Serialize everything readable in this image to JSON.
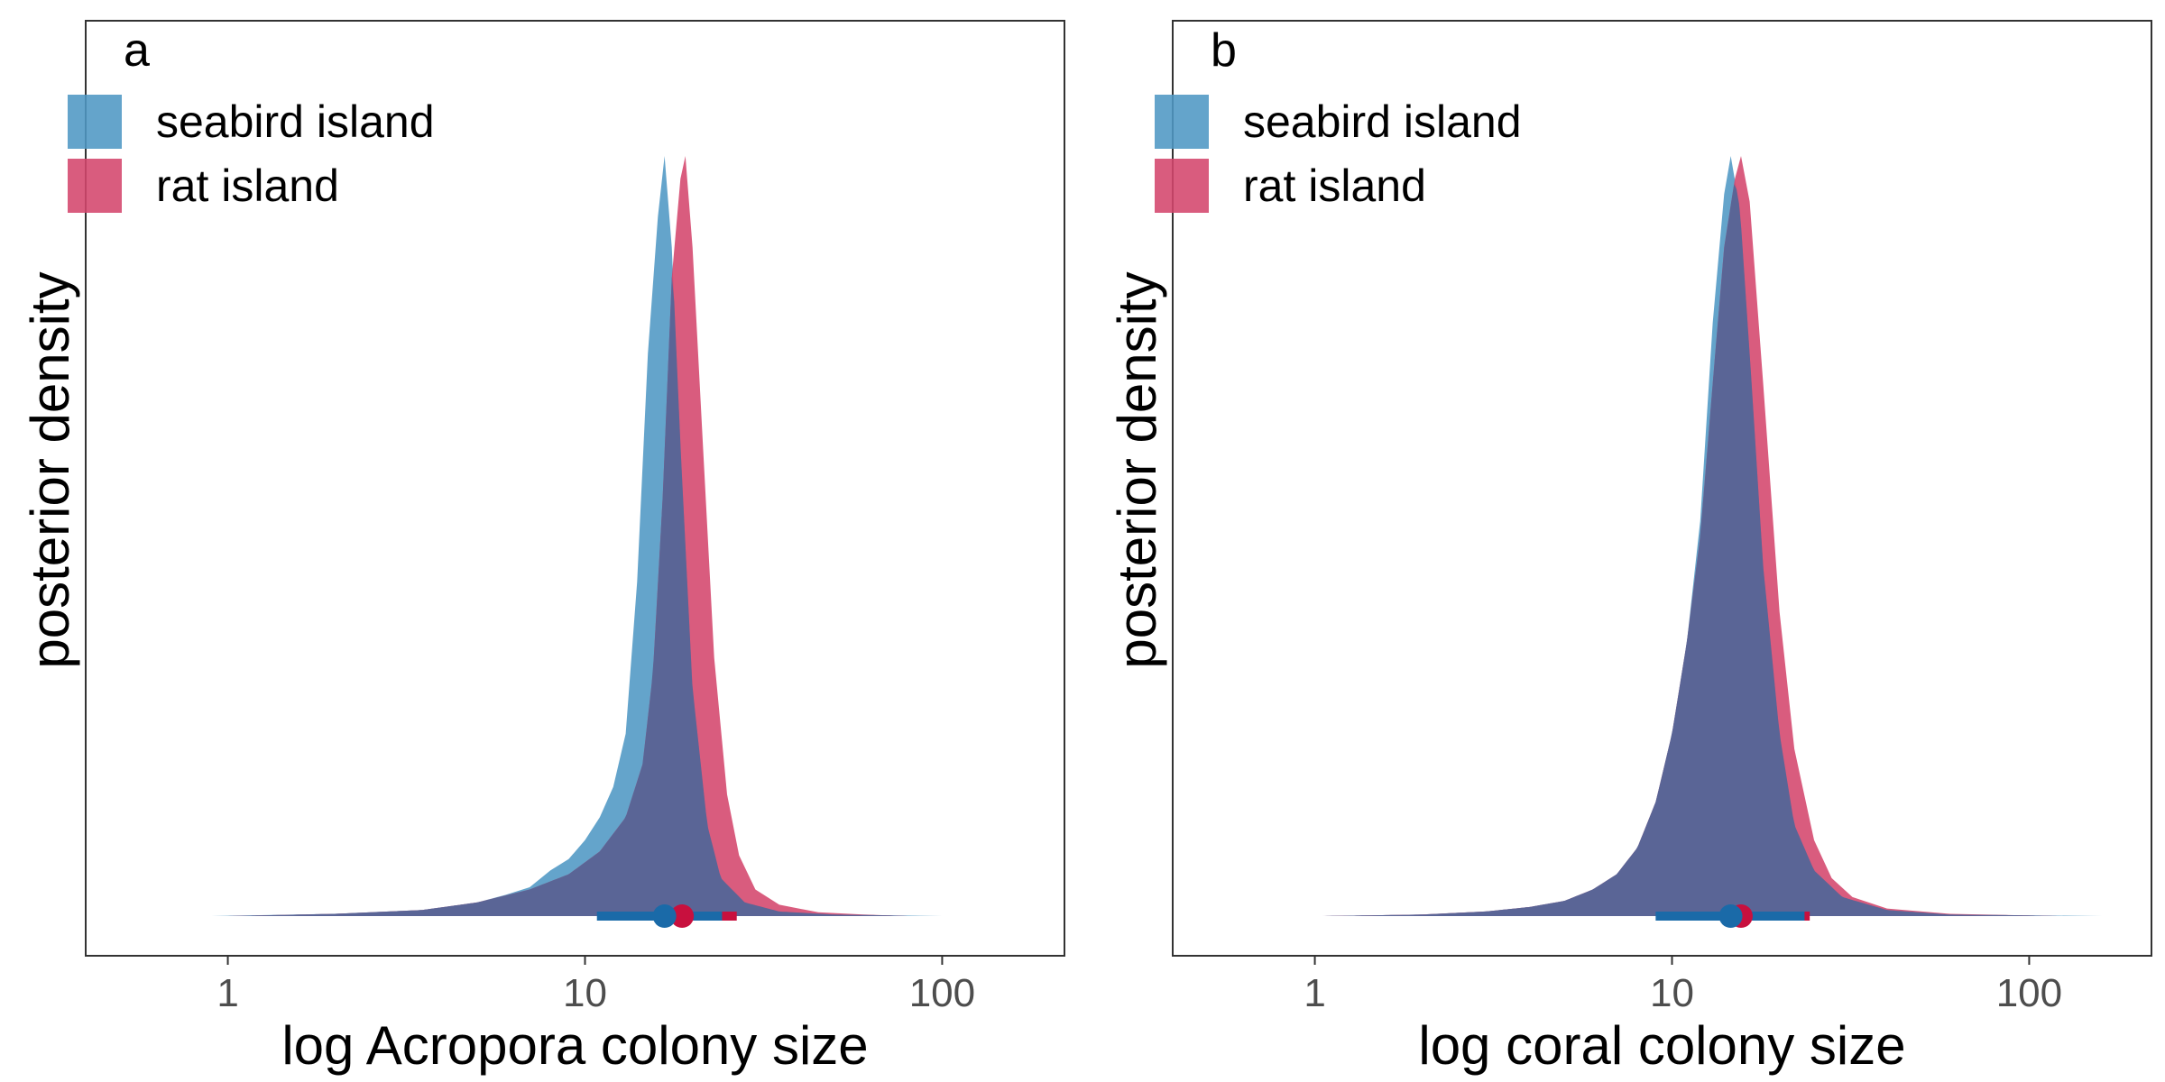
{
  "chart_data": [
    {
      "type": "area",
      "panel_label": "a",
      "xlabel": "log Acropora colony size",
      "ylabel": "posterior density",
      "x_scale": "log10",
      "xlim": [
        0.4,
        220
      ],
      "x_ticks": [
        1,
        10,
        100
      ],
      "x_tick_labels": [
        "1",
        "10",
        "100"
      ],
      "y_ticks_shown": false,
      "grid": false,
      "legend_position": "top-left",
      "series": [
        {
          "name": "seabird island",
          "color": "#4f97c4",
          "density": [
            [
              0.9,
              0
            ],
            [
              2,
              0.003
            ],
            [
              3.5,
              0.008
            ],
            [
              5,
              0.018
            ],
            [
              6,
              0.028
            ],
            [
              7,
              0.038
            ],
            [
              8,
              0.06
            ],
            [
              9,
              0.075
            ],
            [
              10,
              0.1
            ],
            [
              11,
              0.13
            ],
            [
              12,
              0.17
            ],
            [
              13,
              0.24
            ],
            [
              14,
              0.44
            ],
            [
              15,
              0.74
            ],
            [
              16,
              0.92
            ],
            [
              16.7,
              1.0
            ],
            [
              17.5,
              0.88
            ],
            [
              18.5,
              0.62
            ],
            [
              20,
              0.3
            ],
            [
              22,
              0.12
            ],
            [
              24,
              0.05
            ],
            [
              28,
              0.018
            ],
            [
              35,
              0.006
            ],
            [
              50,
              0.002
            ],
            [
              100,
              0
            ]
          ],
          "point_estimate": 16.7,
          "interval": [
            10.8,
            24.2
          ]
        },
        {
          "name": "rat island",
          "color": "#d4466c",
          "density": [
            [
              1,
              0
            ],
            [
              2,
              0.003
            ],
            [
              3.5,
              0.008
            ],
            [
              5,
              0.018
            ],
            [
              7,
              0.035
            ],
            [
              9,
              0.055
            ],
            [
              11,
              0.085
            ],
            [
              13,
              0.13
            ],
            [
              14.5,
              0.2
            ],
            [
              15.5,
              0.32
            ],
            [
              16.5,
              0.55
            ],
            [
              17.5,
              0.84
            ],
            [
              18.5,
              0.97
            ],
            [
              19.1,
              1.0
            ],
            [
              20,
              0.88
            ],
            [
              21.5,
              0.6
            ],
            [
              23,
              0.34
            ],
            [
              25,
              0.16
            ],
            [
              27,
              0.08
            ],
            [
              30,
              0.035
            ],
            [
              35,
              0.015
            ],
            [
              45,
              0.005
            ],
            [
              60,
              0.002
            ],
            [
              80,
              0
            ]
          ],
          "point_estimate": 18.7,
          "interval": [
            11.2,
            26.6
          ]
        }
      ]
    },
    {
      "type": "area",
      "panel_label": "b",
      "xlabel": "log coral colony size",
      "ylabel": "posterior density",
      "x_scale": "log10",
      "xlim": [
        0.4,
        220
      ],
      "x_ticks": [
        1,
        10,
        100
      ],
      "x_tick_labels": [
        "1",
        "10",
        "100"
      ],
      "y_ticks_shown": false,
      "grid": false,
      "legend_position": "top-left",
      "series": [
        {
          "name": "seabird island",
          "color": "#4f97c4",
          "density": [
            [
              1.05,
              0
            ],
            [
              2,
              0.002
            ],
            [
              3,
              0.006
            ],
            [
              4,
              0.012
            ],
            [
              5,
              0.02
            ],
            [
              6,
              0.035
            ],
            [
              7,
              0.055
            ],
            [
              8,
              0.09
            ],
            [
              9,
              0.15
            ],
            [
              10,
              0.24
            ],
            [
              11,
              0.36
            ],
            [
              12,
              0.52
            ],
            [
              13,
              0.78
            ],
            [
              14,
              0.95
            ],
            [
              14.6,
              1.0
            ],
            [
              15.5,
              0.93
            ],
            [
              16.5,
              0.74
            ],
            [
              18,
              0.46
            ],
            [
              20,
              0.24
            ],
            [
              22,
              0.12
            ],
            [
              25,
              0.06
            ],
            [
              30,
              0.025
            ],
            [
              40,
              0.008
            ],
            [
              60,
              0.002
            ],
            [
              160,
              0
            ]
          ],
          "point_estimate": 14.6,
          "interval": [
            9.0,
            23.5
          ]
        },
        {
          "name": "rat island",
          "color": "#d4466c",
          "density": [
            [
              1.05,
              0
            ],
            [
              2,
              0.002
            ],
            [
              3,
              0.006
            ],
            [
              4,
              0.012
            ],
            [
              5,
              0.02
            ],
            [
              6,
              0.035
            ],
            [
              7,
              0.055
            ],
            [
              8,
              0.09
            ],
            [
              9,
              0.15
            ],
            [
              10,
              0.24
            ],
            [
              11,
              0.36
            ],
            [
              12,
              0.5
            ],
            [
              13,
              0.7
            ],
            [
              14,
              0.88
            ],
            [
              15,
              0.97
            ],
            [
              15.6,
              1.0
            ],
            [
              16.5,
              0.94
            ],
            [
              18,
              0.7
            ],
            [
              20,
              0.4
            ],
            [
              22,
              0.22
            ],
            [
              25,
              0.1
            ],
            [
              28,
              0.05
            ],
            [
              32,
              0.025
            ],
            [
              40,
              0.01
            ],
            [
              60,
              0.003
            ],
            [
              120,
              0
            ]
          ],
          "point_estimate": 15.6,
          "interval": [
            9.2,
            24.3
          ]
        }
      ]
    }
  ],
  "overlap_color": "#5a6596"
}
